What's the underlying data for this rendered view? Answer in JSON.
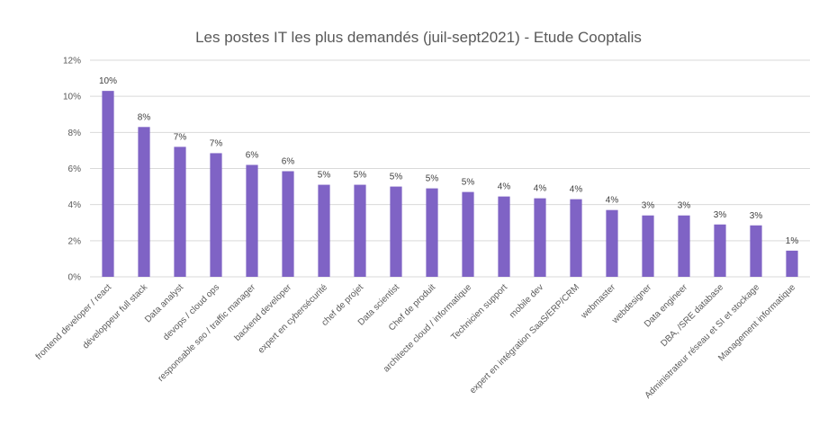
{
  "chart_data": {
    "type": "bar",
    "title": "Les postes IT les plus demandés (juil-sept2021) - Etude Cooptalis",
    "xlabel": "",
    "ylabel": "",
    "ylim": [
      0,
      12
    ],
    "yticks": [
      "0%",
      "2%",
      "4%",
      "6%",
      "8%",
      "10%",
      "12%"
    ],
    "grid": true,
    "legend": "none",
    "bar_color": "#7f63c5",
    "categories": [
      "frontend developer / react",
      "développeur full stack",
      "Data analyst",
      "devops / cloud ops",
      "responsable seo / traffic manager",
      "backend developer",
      "expert en cybersécurité",
      "chef de projet",
      "Data scientist",
      "Chef de produit",
      "architecte cloud / informatique",
      "Technicien support",
      "mobile dev",
      "expert en intégration SaaS/ERP/CRM",
      "webmaster",
      "webdesigner",
      "Data engineer",
      "DBA, /SRE database",
      "Administrateur réseau et SI et stockage",
      "Management informatique"
    ],
    "values": [
      10.3,
      8.3,
      7.2,
      6.85,
      6.2,
      5.85,
      5.1,
      5.1,
      5.0,
      4.9,
      4.7,
      4.45,
      4.35,
      4.3,
      3.7,
      3.4,
      3.4,
      2.9,
      2.85,
      1.45
    ],
    "data_labels": [
      "10%",
      "8%",
      "7%",
      "7%",
      "6%",
      "6%",
      "5%",
      "5%",
      "5%",
      "5%",
      "5%",
      "4%",
      "4%",
      "4%",
      "4%",
      "3%",
      "3%",
      "3%",
      "3%",
      "1%"
    ]
  }
}
